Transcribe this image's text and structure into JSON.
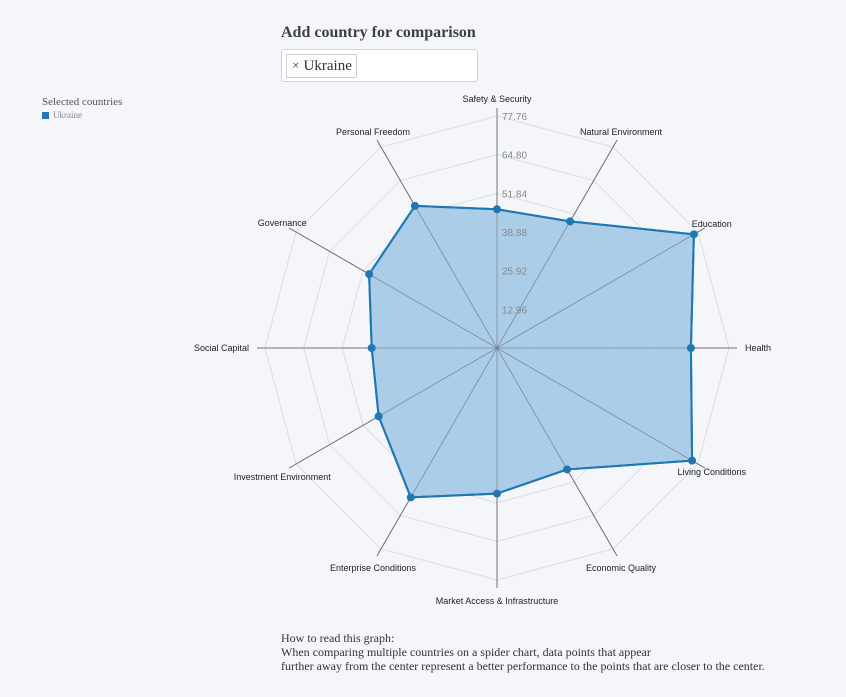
{
  "heading": "Add country for comparison",
  "selector": {
    "tags": [
      {
        "remove_icon": "×",
        "label": "Ukraine"
      }
    ]
  },
  "legend": {
    "title": "Selected countries",
    "items": [
      {
        "label": "Ukraine",
        "color": "#1f77b4"
      }
    ]
  },
  "chart_data": {
    "type": "radar",
    "axes": [
      "Safety & Security",
      "Natural Environment",
      "Education",
      "Health",
      "Living Conditions",
      "Economic Quality",
      "Market Access & Infrastructure",
      "Enterprise Conditions",
      "Investment Environment",
      "Social Capital",
      "Governance",
      "Personal Freedom"
    ],
    "ticks": [
      12.96,
      25.92,
      38.88,
      51.84,
      64.8,
      77.76
    ],
    "range": [
      0,
      77.76
    ],
    "grid": true,
    "legend_position": "top-left",
    "series": [
      {
        "name": "Ukraine",
        "color": "#1f77b4",
        "fill": "#a8cae6",
        "values": [
          46.5,
          49.0,
          76.2,
          65.0,
          75.5,
          47.0,
          48.8,
          57.8,
          45.8,
          42.0,
          49.5,
          55.0
        ]
      }
    ]
  },
  "note": {
    "line1": "How to read this graph:",
    "line2": "When comparing multiple countries on a spider chart, data points that appear",
    "line3": "further away from the center represent a better performance to the points that are closer to the center."
  }
}
